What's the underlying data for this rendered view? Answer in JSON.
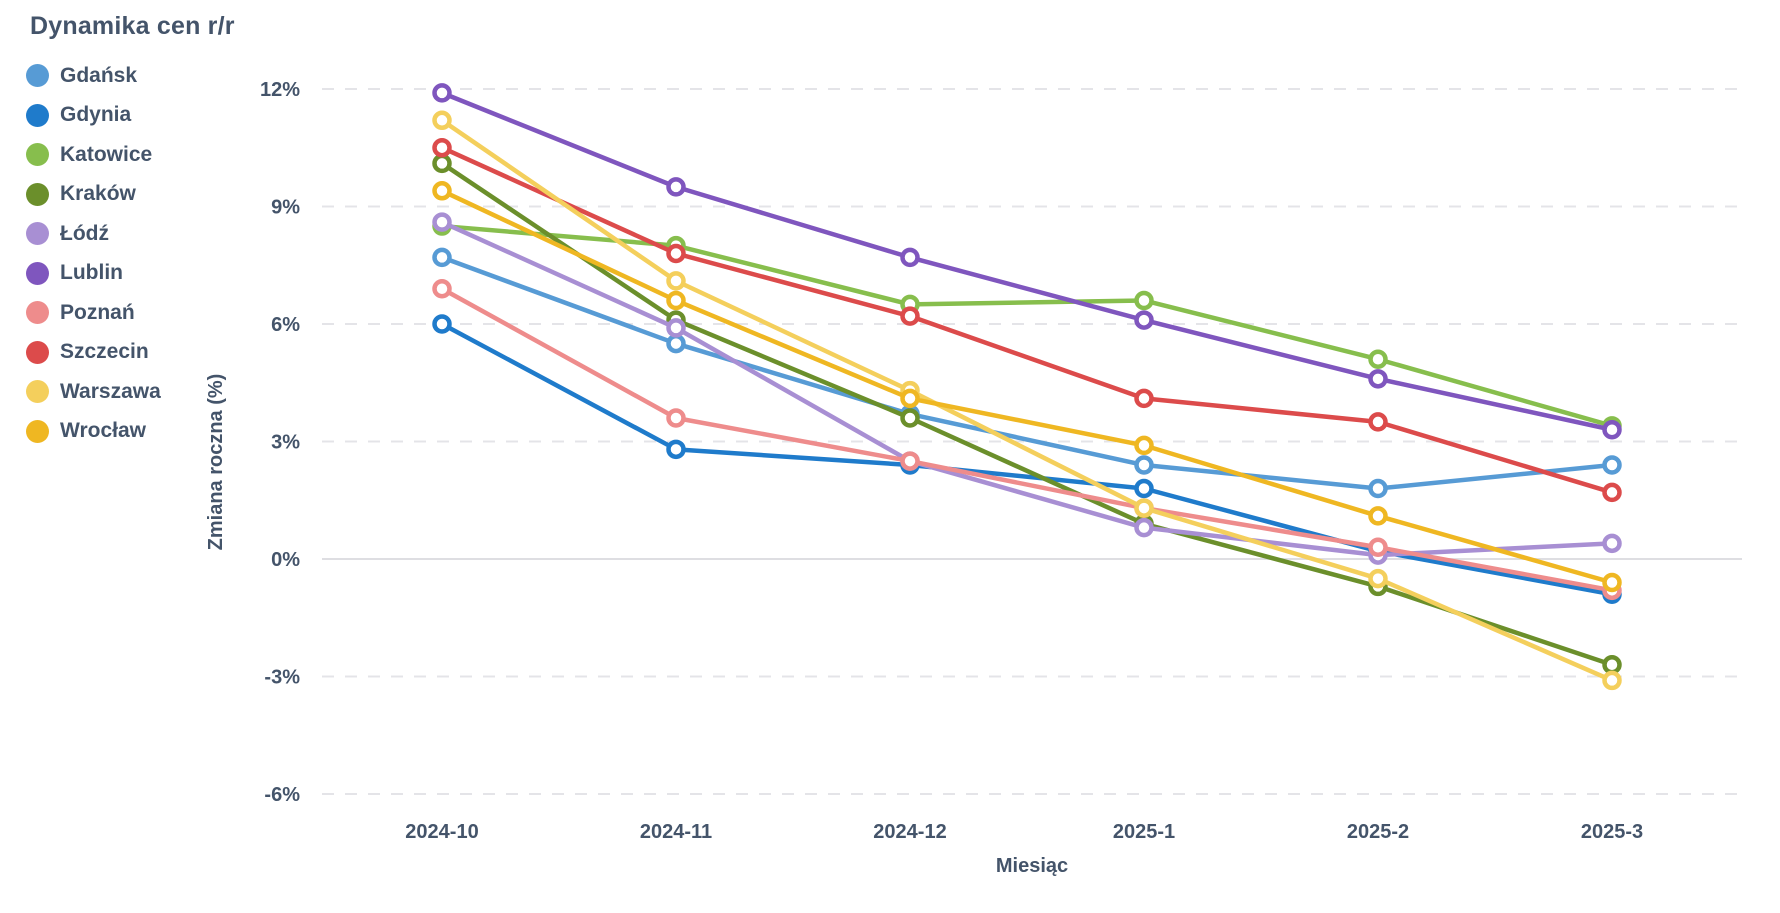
{
  "header": {
    "title": "Dynamika cen r/r"
  },
  "colors": {
    "text": "#44546A",
    "grid_dashed": "#E4E4E8",
    "zero_line": "#DEDEE2",
    "background": "#FFFFFF",
    "marker_fill": "#FFFFFF"
  },
  "chart_data": {
    "type": "line",
    "title": "Dynamika cen r/r",
    "xlabel": "Miesiąc",
    "ylabel": "Zmiana roczna (%)",
    "categories": [
      "2024-10",
      "2024-11",
      "2024-12",
      "2025-1",
      "2025-2",
      "2025-3"
    ],
    "y_ticks": [
      12,
      9,
      6,
      3,
      0,
      -3,
      -6
    ],
    "y_tick_labels": [
      "12%",
      "9%",
      "6%",
      "3%",
      "0%",
      "-3%",
      "-6%"
    ],
    "ylim": [
      -6,
      12
    ],
    "grid": "horizontal dashed, solid line at 0%",
    "legend_position": "top-left vertical",
    "marker_style": "open circle",
    "series": [
      {
        "name": "Gdańsk",
        "color": "#579BD5",
        "values": [
          7.7,
          5.5,
          3.7,
          2.4,
          1.8,
          2.4
        ]
      },
      {
        "name": "Gdynia",
        "color": "#1F7BCB",
        "values": [
          6.0,
          2.8,
          2.4,
          1.8,
          0.2,
          -0.9
        ]
      },
      {
        "name": "Katowice",
        "color": "#87BE4D",
        "values": [
          8.5,
          8.0,
          6.5,
          6.6,
          5.1,
          3.4
        ]
      },
      {
        "name": "Kraków",
        "color": "#6B8F2B",
        "values": [
          10.1,
          6.1,
          3.6,
          0.9,
          -0.7,
          -2.7
        ]
      },
      {
        "name": "Łódź",
        "color": "#A88FD3",
        "values": [
          8.6,
          5.9,
          2.5,
          0.8,
          0.1,
          0.4
        ]
      },
      {
        "name": "Lublin",
        "color": "#7F56BE",
        "values": [
          11.9,
          9.5,
          7.7,
          6.1,
          4.6,
          3.3
        ]
      },
      {
        "name": "Poznań",
        "color": "#EE8C8C",
        "values": [
          6.9,
          3.6,
          2.5,
          1.3,
          0.3,
          -0.8
        ]
      },
      {
        "name": "Szczecin",
        "color": "#DC4B4B",
        "values": [
          10.5,
          7.8,
          6.2,
          4.1,
          3.5,
          1.7
        ]
      },
      {
        "name": "Warszawa",
        "color": "#F4CF5C",
        "values": [
          11.2,
          7.1,
          4.3,
          1.3,
          -0.5,
          -3.1
        ]
      },
      {
        "name": "Wrocław",
        "color": "#EFB722",
        "values": [
          9.4,
          6.6,
          4.1,
          2.9,
          1.1,
          -0.6
        ]
      }
    ]
  }
}
